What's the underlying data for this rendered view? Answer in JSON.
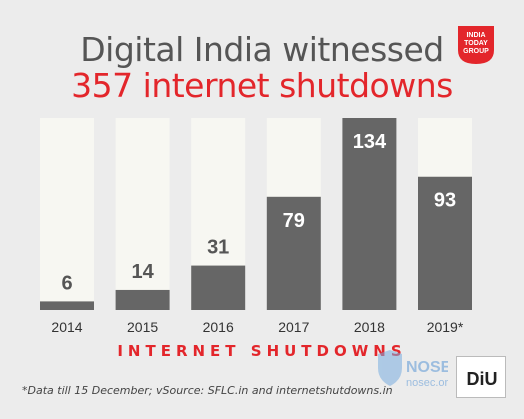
{
  "header": {
    "title_line1": "Digital India witnessed",
    "title_line2": "357 internet shutdowns",
    "logo_text": [
      "INDIA",
      "TODAY",
      "GROUP"
    ]
  },
  "chart_data": {
    "type": "bar",
    "categories": [
      "2014",
      "2015",
      "2016",
      "2017",
      "2018",
      "2019*"
    ],
    "values": [
      6,
      14,
      31,
      79,
      134,
      93
    ],
    "ylim": [
      0,
      134
    ],
    "xlabel": "INTERNET SHUTDOWNS",
    "ylabel": "",
    "title": "Digital India witnessed 357 internet shutdowns",
    "grid": false
  },
  "footnote": "*Data till 15 December; vSource: SFLC.in and internetshutdowns.in",
  "watermarks": {
    "nosec": "NOSEC",
    "nosec_sub": "nosec.org",
    "diu": "DiU"
  },
  "colors": {
    "background": "#ececec",
    "bar_track": "#f7f7f2",
    "bar_fill": "#666666",
    "accent_red": "#e3262b",
    "label_dark": "#555555",
    "label_light": "#ffffff"
  }
}
